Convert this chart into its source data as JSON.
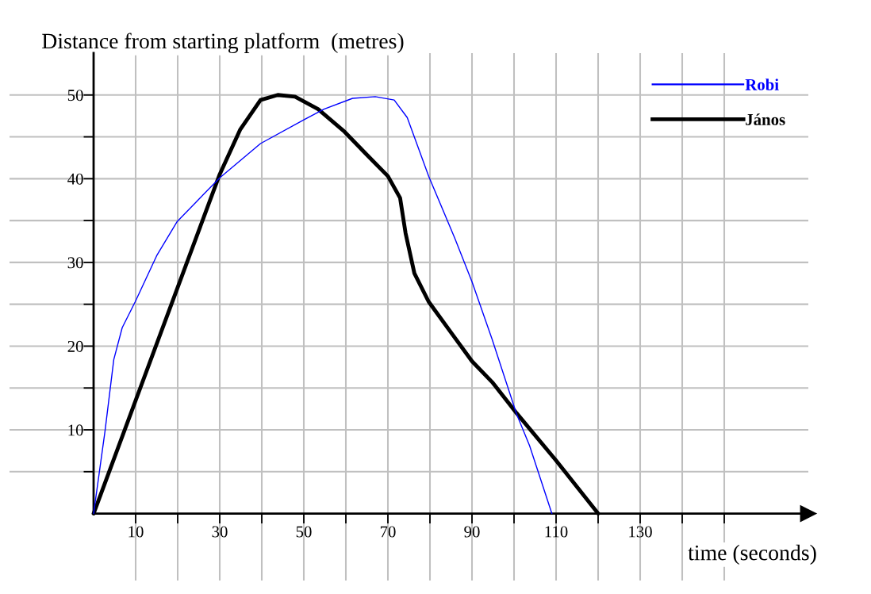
{
  "chart_data": {
    "type": "line",
    "xlabel": "time (seconds)",
    "ylabel": "Distance from starting platform  (metres)",
    "xlim": [
      -20,
      170
    ],
    "ylim": [
      -8,
      55
    ],
    "xticks": [
      {
        "value": 10,
        "label": "10"
      },
      {
        "value": 20,
        "label": null
      },
      {
        "value": 30,
        "label": "30"
      },
      {
        "value": 40,
        "label": null
      },
      {
        "value": 50,
        "label": "50"
      },
      {
        "value": 60,
        "label": null
      },
      {
        "value": 70,
        "label": "70"
      },
      {
        "value": 80,
        "label": null
      },
      {
        "value": 90,
        "label": "90"
      },
      {
        "value": 100,
        "label": null
      },
      {
        "value": 110,
        "label": "110"
      },
      {
        "value": 120,
        "label": null
      },
      {
        "value": 130,
        "label": "130"
      },
      {
        "value": 140,
        "label": null
      },
      {
        "value": 150,
        "label": null
      }
    ],
    "yticks": [
      {
        "value": 5,
        "label": null
      },
      {
        "value": 10,
        "label": "10"
      },
      {
        "value": 15,
        "label": null
      },
      {
        "value": 20,
        "label": "20"
      },
      {
        "value": 25,
        "label": null
      },
      {
        "value": 30,
        "label": "30"
      },
      {
        "value": 35,
        "label": null
      },
      {
        "value": 40,
        "label": "40"
      },
      {
        "value": 45,
        "label": null
      },
      {
        "value": 50,
        "label": "50"
      }
    ],
    "grid": true,
    "legend": "top right",
    "marker": "none",
    "series": [
      {
        "name": "Robi",
        "color": "#0000ff",
        "x": [
          0,
          2.7,
          4.8,
          6.8,
          9.9,
          15,
          19.9,
          30,
          39.7,
          49.9,
          54.8,
          61.6,
          67,
          71.5,
          74.6,
          79.7,
          85.9,
          90,
          94.8,
          100.6,
          103.7,
          109
        ],
        "values": [
          0,
          9.8,
          18.4,
          22.2,
          25.3,
          30.8,
          34.9,
          40.1,
          44.2,
          47,
          48.3,
          49.6,
          49.8,
          49.4,
          47.3,
          40.3,
          32.9,
          27.7,
          20.8,
          11.9,
          8.1,
          0
        ]
      },
      {
        "name": "János",
        "color": "#000000",
        "x": [
          0,
          29.9,
          34.9,
          39.7,
          43.8,
          47.9,
          53.4,
          59.7,
          65.1,
          70,
          72.9,
          74.2,
          76.3,
          79.7,
          85.2,
          90,
          94.8,
          100.6,
          109.9,
          120
        ],
        "values": [
          0,
          40.4,
          45.9,
          49.4,
          50,
          49.8,
          48.3,
          45.6,
          42.8,
          40.3,
          37.7,
          33.5,
          28.7,
          25.3,
          21.5,
          18.2,
          15.7,
          12,
          6.4,
          0
        ]
      }
    ]
  }
}
